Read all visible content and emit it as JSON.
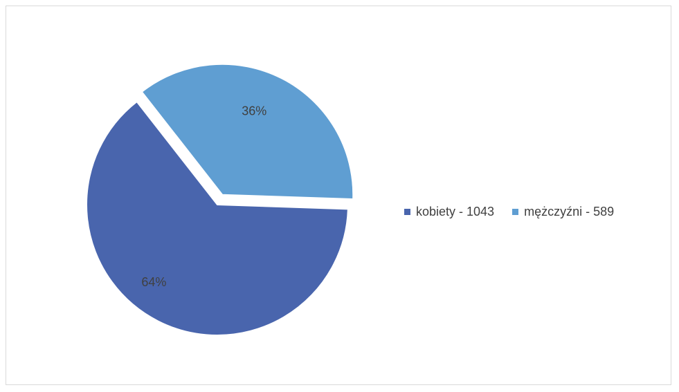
{
  "chart_data": {
    "type": "pie",
    "series": [
      {
        "name": "kobiety - 1043",
        "value": 1043,
        "percent_label": "64%",
        "color": "#4965AD"
      },
      {
        "name": "mężczyźni - 589",
        "value": 589,
        "percent_label": "36%",
        "color": "#5F9ED2"
      }
    ],
    "exploded_slice": "mężczyźni - 589",
    "start_angle_deg": 0,
    "legend_position": "right",
    "label_color": "#404040"
  }
}
